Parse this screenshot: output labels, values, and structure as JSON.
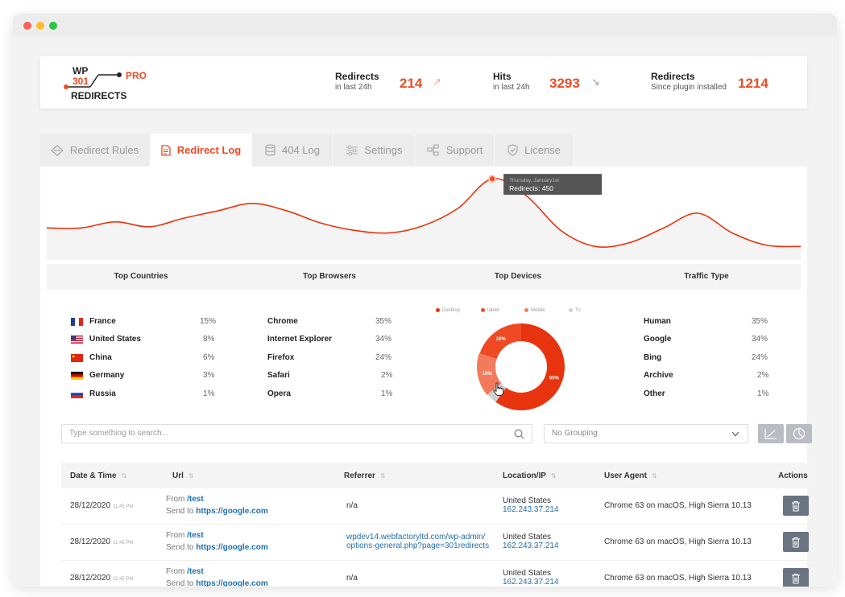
{
  "window": {
    "controls": [
      "close",
      "minimize",
      "maximize"
    ]
  },
  "logo": {
    "line1": "WP",
    "line2": "301",
    "pro": "PRO",
    "line3": "REDIRECTS"
  },
  "header_stats": [
    {
      "label": "Redirects",
      "sub": "in last 24h",
      "value": "214",
      "trend": "up"
    },
    {
      "label": "Hits",
      "sub": "in last 24h",
      "value": "3293",
      "trend": "down"
    },
    {
      "label": "Redirects",
      "sub": "Since plugin installed",
      "value": "1214"
    }
  ],
  "tabs": [
    {
      "label": "Redirect Rules",
      "icon": "diamond-arrows-icon",
      "active": false
    },
    {
      "label": "Redirect Log",
      "icon": "document-icon",
      "active": true
    },
    {
      "label": "404 Log",
      "icon": "database-icon",
      "active": false
    },
    {
      "label": "Settings",
      "icon": "sliders-icon",
      "active": false
    },
    {
      "label": "Support",
      "icon": "network-icon",
      "active": false
    },
    {
      "label": "License",
      "icon": "shield-check-icon",
      "active": false
    }
  ],
  "chart_data": {
    "type": "line",
    "title": "",
    "xlabel": "",
    "ylabel": "",
    "series": [
      {
        "values": [
          250,
          250,
          275,
          255,
          290,
          320,
          350,
          320,
          270,
          240,
          230,
          260,
          330,
          450,
          380,
          240,
          175,
          190,
          250,
          310,
          230,
          180,
          175
        ]
      }
    ],
    "grid": false,
    "tooltip": {
      "title": "Thursday, January1st",
      "text": "Redirects: 450"
    }
  },
  "stats_headers": [
    "Top Countries",
    "Top Browsers",
    "Top Devices",
    "Traffic Type"
  ],
  "countries": [
    {
      "name": "France",
      "pct": "15%",
      "flag": "flag-france"
    },
    {
      "name": "United States",
      "pct": "8%",
      "flag": "flag-usa"
    },
    {
      "name": "China",
      "pct": "6%",
      "flag": "flag-china"
    },
    {
      "name": "Germany",
      "pct": "3%",
      "flag": "flag-germany"
    },
    {
      "name": "Russia",
      "pct": "1%",
      "flag": "flag-russia"
    }
  ],
  "browsers": [
    {
      "name": "Chrome",
      "pct": "35%"
    },
    {
      "name": "Internet Explorer",
      "pct": "34%"
    },
    {
      "name": "Firefox",
      "pct": "24%"
    },
    {
      "name": "Safari",
      "pct": "2%"
    },
    {
      "name": "Opera",
      "pct": "1%"
    }
  ],
  "devices": {
    "legend": [
      {
        "name": "Desktop",
        "color": "#e8340e"
      },
      {
        "name": "tablet",
        "color": "#f04a25"
      },
      {
        "name": "Mobile",
        "color": "#f47a5c"
      },
      {
        "name": "Tv",
        "color": "#d0d0d0"
      }
    ],
    "slices": [
      {
        "name": "Desktop",
        "value": 60,
        "label": "60%",
        "color": "#e8340e"
      },
      {
        "name": "Tv",
        "value": 4,
        "label": "4%",
        "color": "#d0d0d0"
      },
      {
        "name": "Mobile",
        "value": 16,
        "label": "16%",
        "color": "#f47a5c"
      },
      {
        "name": "tablet",
        "value": 20,
        "label": "20%",
        "color": "#f04a25"
      }
    ]
  },
  "traffic": [
    {
      "name": "Human",
      "pct": "35%"
    },
    {
      "name": "Google",
      "pct": "34%"
    },
    {
      "name": "Bing",
      "pct": "24%"
    },
    {
      "name": "Archive",
      "pct": "2%"
    },
    {
      "name": "Other",
      "pct": "1%"
    }
  ],
  "search": {
    "placeholder": "Type something to search..."
  },
  "grouping": {
    "value": "No Grouping"
  },
  "table": {
    "headers": [
      "Date & Time",
      "Url",
      "Referrer",
      "Location/IP",
      "User Agent",
      "Actions"
    ],
    "rows": [
      {
        "date": "28/12/2020",
        "time": "11:45 PM",
        "from_label": "From",
        "from": "/test",
        "send_label": "Send to",
        "send": "https://google.com",
        "referrer1": "n/a",
        "referrer2": "",
        "country": "United States",
        "ip": "162.243.37.214",
        "agent": "Chrome 63 on macOS, High Sierra 10.13"
      },
      {
        "date": "28/12/2020",
        "time": "11:45 PM",
        "from_label": "From",
        "from": "/test",
        "send_label": "Send to",
        "send": "https://google.com",
        "referrer1": "wpdev14.webfactoryltd.com/wp-admin/",
        "referrer2": "options-general.php?page=301redirects",
        "country": "United States",
        "ip": "162.243.37.214",
        "agent": "Chrome 63 on macOS, High Sierra 10.13"
      },
      {
        "date": "28/12/2020",
        "time": "11:45 PM",
        "from_label": "From",
        "from": "/test",
        "send_label": "Send to",
        "send": "https://google.com",
        "referrer1": "n/a",
        "referrer2": "",
        "country": "United States",
        "ip": "162.243.37.214",
        "agent": "Chrome 63 on macOS, High Sierra 10.13"
      }
    ]
  }
}
